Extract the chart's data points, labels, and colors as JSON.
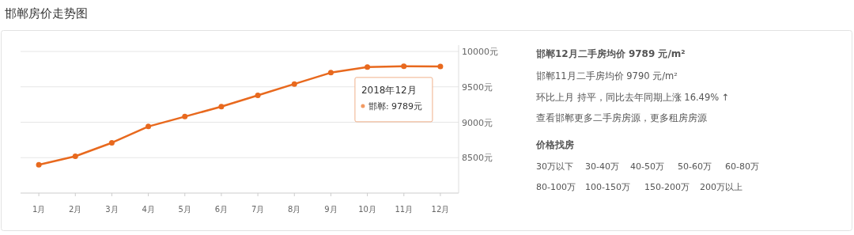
{
  "chart_data": {
    "type": "line",
    "title": "邯郸房价走势图",
    "categories": [
      "1月",
      "2月",
      "3月",
      "4月",
      "5月",
      "6月",
      "7月",
      "8月",
      "9月",
      "10月",
      "11月",
      "12月"
    ],
    "series": [
      {
        "color": "#e8691e",
        "values": [
          8400,
          8520,
          8710,
          8940,
          9080,
          9220,
          9380,
          9540,
          9700,
          9780,
          9790,
          9789
        ]
      }
    ],
    "ylim": [
      8000,
      10000
    ],
    "yticks": [
      {
        "value": 8500,
        "label": "8500元"
      },
      {
        "value": 9000,
        "label": "9000元"
      },
      {
        "value": 9500,
        "label": "9500元"
      },
      {
        "value": 10000,
        "label": "10000元"
      }
    ],
    "grid": "y",
    "marker": "circle",
    "annotations": [
      "2018年12月",
      "邯郸:  9789元",
      "邯郸12月二手房均价 9789 元/m²",
      "邯郸11月二手房均价 9790 元/m²",
      "环比上月 持平，同比去年同期上涨 16.49% ↑",
      "查看邯郸更多二手房房源，更多租房房源",
      "价格找房",
      "30万以下",
      "30-40万",
      "40-50万",
      "50-60万",
      "60-80万",
      "80-100万",
      "100-150万",
      "150-200万",
      "200万以上"
    ]
  }
}
